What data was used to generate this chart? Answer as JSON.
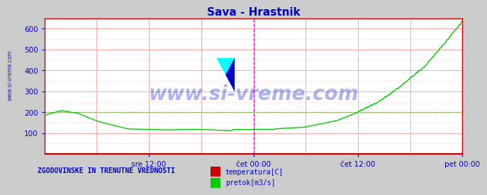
{
  "title": "Sava - Hrastnik",
  "title_color": "#0000cc",
  "background_color": "#cccccc",
  "plot_bg_color": "#ffffff",
  "grid_color_major": "#ff9999",
  "grid_color_minor": "#ffdddd",
  "ylim": [
    0,
    650
  ],
  "yticks": [
    100,
    200,
    300,
    400,
    500,
    600
  ],
  "xtick_labels": [
    "sre 12:00",
    "čet 00:00",
    "čet 12:00",
    "pet 00:00"
  ],
  "xtick_positions": [
    0.25,
    0.5,
    0.75,
    1.0
  ],
  "vline_positions": [
    0.5,
    1.0
  ],
  "vline_color": "#cc00cc",
  "hline_value": 200,
  "hline_color": "#00cc00",
  "watermark_text": "www.si-vreme.com",
  "watermark_color": "#0000cc",
  "watermark_alpha": 0.3,
  "sidebar_text": "www.si-vreme.com",
  "sidebar_color": "#0000cc",
  "legend_title": "ZGODOVINSKE IN TRENUTNE VREDNOSTI",
  "legend_title_color": "#0000cc",
  "legend_items": [
    {
      "label": "temperatura[C]",
      "color": "#cc0000"
    },
    {
      "label": "pretok[m3/s]",
      "color": "#00cc00"
    }
  ],
  "temp_line_color": "#cc0000",
  "flow_line_color": "#00cc00",
  "axis_color": "#cc0000",
  "tick_color": "#0000cc",
  "logo_yellow": "#ffff00",
  "logo_cyan": "#00ffff",
  "logo_blue": "#0000cc"
}
